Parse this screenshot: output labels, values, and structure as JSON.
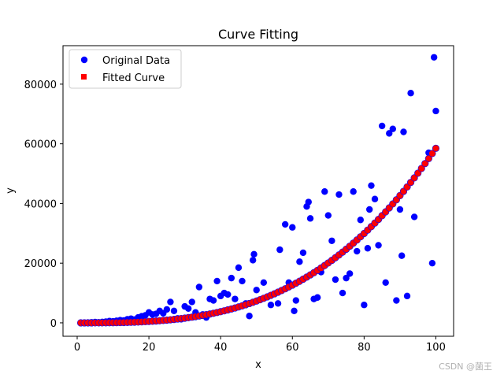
{
  "chart_data": {
    "type": "scatter",
    "title": "Curve Fitting",
    "xlabel": "x",
    "ylabel": "y",
    "xlim": [
      -3.95,
      104.95
    ],
    "ylim": [
      -4500,
      92900
    ],
    "xticks": [
      0,
      20,
      40,
      60,
      80,
      100
    ],
    "yticks": [
      0,
      20000,
      40000,
      60000,
      80000
    ],
    "legend": {
      "location": "top-left"
    },
    "colors": {
      "original": "#0000ff",
      "fitted": "#ff0000",
      "axes": "#000000"
    },
    "series": [
      {
        "name": "Original Data",
        "marker": "circle",
        "points": [
          [
            1,
            20
          ],
          [
            2,
            40
          ],
          [
            3,
            90
          ],
          [
            4,
            150
          ],
          [
            5,
            250
          ],
          [
            6,
            180
          ],
          [
            7,
            300
          ],
          [
            8,
            400
          ],
          [
            9,
            600
          ],
          [
            10,
            500
          ],
          [
            11,
            700
          ],
          [
            12,
            900
          ],
          [
            13,
            800
          ],
          [
            14,
            1200
          ],
          [
            15,
            1400
          ],
          [
            16,
            1100
          ],
          [
            17,
            1800
          ],
          [
            18,
            2200
          ],
          [
            19,
            2500
          ],
          [
            20,
            3500
          ],
          [
            21,
            2800
          ],
          [
            22,
            3000
          ],
          [
            23,
            4000
          ],
          [
            24,
            3200
          ],
          [
            25,
            4500
          ],
          [
            26,
            7000
          ],
          [
            27,
            4000
          ],
          [
            28,
            1500
          ],
          [
            29,
            1200
          ],
          [
            30,
            5500
          ],
          [
            31,
            4800
          ],
          [
            32,
            7000
          ],
          [
            33,
            3500
          ],
          [
            34,
            12000
          ],
          [
            35,
            2800
          ],
          [
            36,
            1800
          ],
          [
            37,
            8000
          ],
          [
            38,
            7500
          ],
          [
            39,
            14000
          ],
          [
            40,
            9000
          ],
          [
            41,
            10000
          ],
          [
            42,
            9500
          ],
          [
            43,
            15000
          ],
          [
            44,
            8000
          ],
          [
            45,
            18500
          ],
          [
            46,
            14000
          ],
          [
            47,
            6500
          ],
          [
            48,
            2300
          ],
          [
            49,
            21000
          ],
          [
            49.3,
            23000
          ],
          [
            50,
            11000
          ],
          [
            52,
            13500
          ],
          [
            54,
            6000
          ],
          [
            56,
            6500
          ],
          [
            56.5,
            24500
          ],
          [
            58,
            33000
          ],
          [
            59,
            13500
          ],
          [
            60,
            32000
          ],
          [
            60.5,
            4000
          ],
          [
            61,
            7500
          ],
          [
            62,
            20500
          ],
          [
            63,
            23500
          ],
          [
            64,
            39000
          ],
          [
            64.5,
            40500
          ],
          [
            65,
            35000
          ],
          [
            66,
            8000
          ],
          [
            67,
            8500
          ],
          [
            68,
            17000
          ],
          [
            69,
            44000
          ],
          [
            70,
            36000
          ],
          [
            71,
            27500
          ],
          [
            72,
            14500
          ],
          [
            73,
            43000
          ],
          [
            74,
            10000
          ],
          [
            75,
            15000
          ],
          [
            76,
            16500
          ],
          [
            77,
            44000
          ],
          [
            78,
            24000
          ],
          [
            79,
            34500
          ],
          [
            80,
            6000
          ],
          [
            81,
            25000
          ],
          [
            81.5,
            38000
          ],
          [
            82,
            46000
          ],
          [
            83,
            41500
          ],
          [
            84,
            26000
          ],
          [
            85,
            66000
          ],
          [
            86,
            13500
          ],
          [
            87,
            63500
          ],
          [
            88,
            65000
          ],
          [
            89,
            7500
          ],
          [
            90,
            38000
          ],
          [
            90.5,
            22500
          ],
          [
            91,
            64000
          ],
          [
            92,
            9000
          ],
          [
            93,
            77000
          ],
          [
            94,
            35500
          ],
          [
            98,
            57000
          ],
          [
            99,
            20000
          ],
          [
            99.5,
            89000
          ],
          [
            100,
            71000
          ]
        ]
      },
      {
        "name": "Fitted Curve",
        "marker": "square",
        "x": [
          1,
          2,
          3,
          4,
          5,
          6,
          7,
          8,
          9,
          10,
          11,
          12,
          13,
          14,
          15,
          16,
          17,
          18,
          19,
          20,
          21,
          22,
          23,
          24,
          25,
          26,
          27,
          28,
          29,
          30,
          31,
          32,
          33,
          34,
          35,
          36,
          37,
          38,
          39,
          40,
          41,
          42,
          43,
          44,
          45,
          46,
          47,
          48,
          49,
          50,
          51,
          52,
          53,
          54,
          55,
          56,
          57,
          58,
          59,
          60,
          61,
          62,
          63,
          64,
          65,
          66,
          67,
          68,
          69,
          70,
          71,
          72,
          73,
          74,
          75,
          76,
          77,
          78,
          79,
          80,
          81,
          82,
          83,
          84,
          85,
          86,
          87,
          88,
          89,
          90,
          91,
          92,
          93,
          94,
          95,
          96,
          97,
          98,
          99,
          100
        ],
        "model": "y = 0.0585 * x^3",
        "y_max": 58500
      }
    ]
  },
  "watermark": "CSDN @菌王"
}
